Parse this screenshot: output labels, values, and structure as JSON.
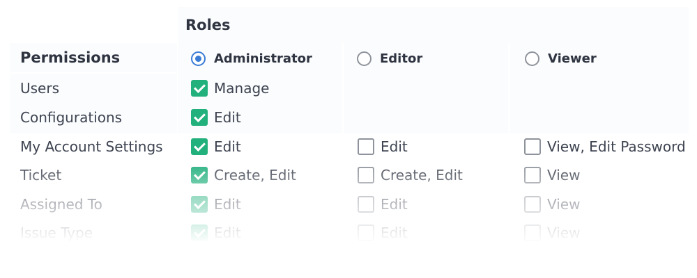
{
  "header": {
    "roles_title": "Roles",
    "permissions_title": "Permissions"
  },
  "roles": [
    {
      "label": "Administrator",
      "selected": true
    },
    {
      "label": "Editor",
      "selected": false
    },
    {
      "label": "Viewer",
      "selected": false
    }
  ],
  "permissions": [
    {
      "label": "Users",
      "cells": [
        {
          "label": "Manage",
          "checked": true
        }
      ]
    },
    {
      "label": "Configurations",
      "cells": [
        {
          "label": "Edit",
          "checked": true
        }
      ]
    },
    {
      "label": "My Account Settings",
      "cells": [
        {
          "label": "Edit",
          "checked": true
        },
        {
          "label": "Edit",
          "checked": false
        },
        {
          "label": "View, Edit Password",
          "checked": false
        }
      ]
    },
    {
      "label": "Ticket",
      "cells": [
        {
          "label": "Create, Edit",
          "checked": true
        },
        {
          "label": "Create, Edit",
          "checked": false
        },
        {
          "label": "View",
          "checked": false
        }
      ]
    },
    {
      "label": "Assigned To",
      "cells": [
        {
          "label": "Edit",
          "checked": true
        },
        {
          "label": "Edit",
          "checked": false
        },
        {
          "label": "View",
          "checked": false
        }
      ]
    },
    {
      "label": "Issue Type",
      "cells": [
        {
          "label": "Edit",
          "checked": true
        },
        {
          "label": "Edit",
          "checked": false
        },
        {
          "label": "View",
          "checked": false
        }
      ]
    }
  ],
  "colors": {
    "accent_blue": "#3a7bd5",
    "check_green": "#22b07d",
    "text": "#3d4350"
  }
}
